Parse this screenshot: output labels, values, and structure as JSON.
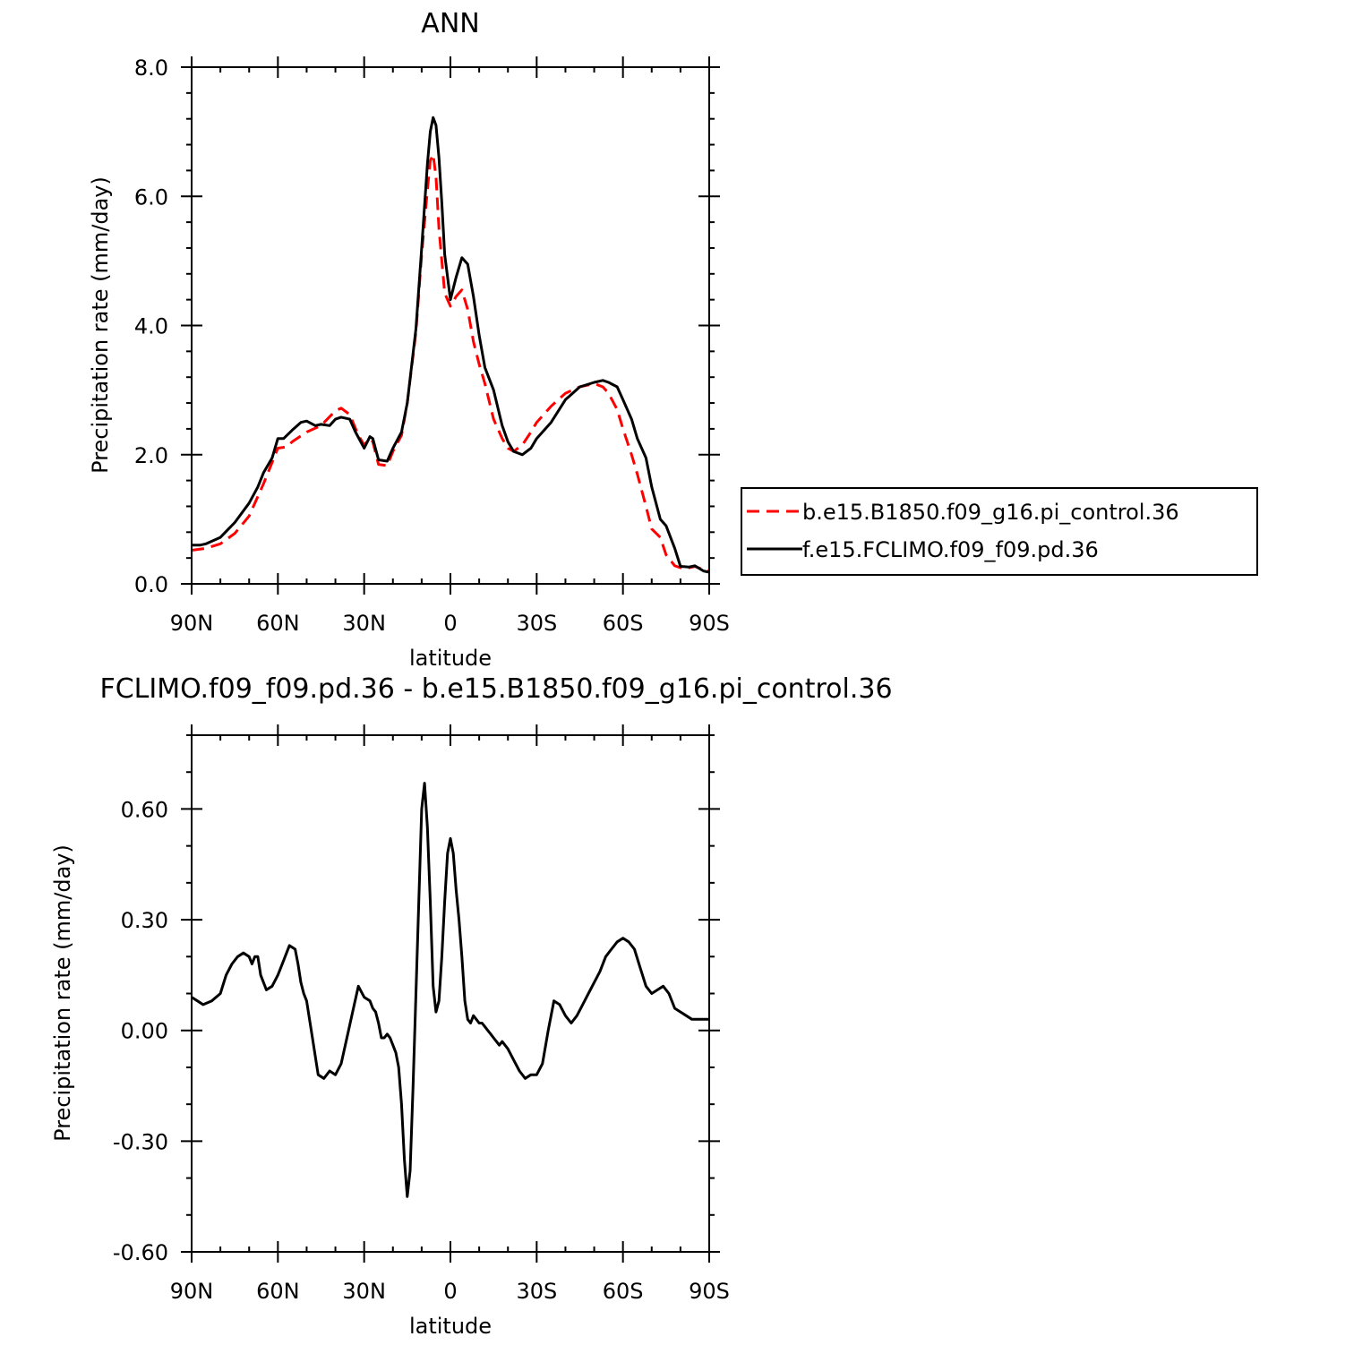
{
  "chart_data": [
    {
      "type": "line",
      "title": "ANN",
      "xlabel": "latitude",
      "ylabel": "Precipitation rate (mm/day)",
      "xlim": [
        90,
        -90
      ],
      "ylim": [
        0.0,
        8.0
      ],
      "x_ticks": [
        90,
        60,
        30,
        0,
        -30,
        -60,
        -90
      ],
      "x_tick_labels": [
        "90N",
        "60N",
        "30N",
        "0",
        "30S",
        "60S",
        "90S"
      ],
      "y_ticks": [
        0.0,
        2.0,
        4.0,
        6.0,
        8.0
      ],
      "y_tick_labels": [
        "0.0",
        "2.0",
        "4.0",
        "6.0",
        "8.0"
      ],
      "legend_position": "right-bottom-outside",
      "series": [
        {
          "name": "b.e15.B1850.f09_g16.pi_control.36",
          "color": "#ff0000",
          "dash": true,
          "x": [
            90,
            85,
            80,
            75,
            70,
            65,
            60,
            57,
            55,
            50,
            45,
            40,
            38,
            35,
            32,
            30,
            28,
            27,
            25,
            22,
            20,
            17,
            15,
            12,
            10,
            8,
            7,
            6,
            5,
            4,
            2,
            0,
            -2,
            -4,
            -6,
            -8,
            -10,
            -12,
            -15,
            -18,
            -20,
            -22,
            -25,
            -28,
            -30,
            -35,
            -40,
            -45,
            -50,
            -53,
            -55,
            -58,
            -60,
            -63,
            -65,
            -68,
            -70,
            -73,
            -75,
            -78,
            -80,
            -83,
            -85,
            -88,
            -90
          ],
          "y": [
            0.52,
            0.55,
            0.62,
            0.78,
            1.05,
            1.55,
            2.1,
            2.12,
            2.2,
            2.35,
            2.45,
            2.68,
            2.72,
            2.62,
            2.3,
            2.15,
            2.25,
            2.2,
            1.85,
            1.83,
            2.05,
            2.3,
            2.8,
            3.9,
            5.1,
            6.1,
            6.55,
            6.65,
            6.3,
            5.5,
            4.5,
            4.3,
            4.45,
            4.55,
            4.25,
            3.75,
            3.4,
            3.1,
            2.55,
            2.25,
            2.1,
            2.05,
            2.15,
            2.35,
            2.5,
            2.75,
            2.95,
            3.05,
            3.1,
            3.05,
            2.95,
            2.7,
            2.4,
            2.0,
            1.7,
            1.2,
            0.85,
            0.72,
            0.45,
            0.28,
            0.25,
            0.25,
            0.27,
            0.22,
            0.2
          ]
        },
        {
          "name": "f.e15.FCLIMO.f09_f09.pd.36",
          "color": "#000000",
          "dash": false,
          "x": [
            90,
            87,
            85,
            80,
            75,
            70,
            67,
            65,
            62,
            60,
            58,
            55,
            52,
            50,
            47,
            45,
            42,
            40,
            38,
            35,
            33,
            30,
            28,
            27,
            25,
            22,
            20,
            17,
            15,
            12,
            10,
            8,
            7,
            6,
            5,
            4,
            3,
            2,
            0,
            -2,
            -4,
            -6,
            -8,
            -10,
            -12,
            -15,
            -18,
            -20,
            -22,
            -25,
            -28,
            -30,
            -35,
            -40,
            -45,
            -50,
            -53,
            -55,
            -58,
            -60,
            -63,
            -65,
            -68,
            -70,
            -73,
            -75,
            -78,
            -80,
            -83,
            -85,
            -88,
            -90
          ],
          "y": [
            0.6,
            0.6,
            0.62,
            0.72,
            0.95,
            1.25,
            1.5,
            1.72,
            1.95,
            2.25,
            2.25,
            2.38,
            2.5,
            2.52,
            2.45,
            2.47,
            2.45,
            2.55,
            2.58,
            2.55,
            2.35,
            2.1,
            2.28,
            2.25,
            1.92,
            1.9,
            2.1,
            2.35,
            2.8,
            3.95,
            5.2,
            6.5,
            7.0,
            7.22,
            7.1,
            6.6,
            5.9,
            5.1,
            4.4,
            4.75,
            5.05,
            4.95,
            4.45,
            3.85,
            3.35,
            3.0,
            2.45,
            2.2,
            2.05,
            2.0,
            2.1,
            2.25,
            2.5,
            2.85,
            3.05,
            3.12,
            3.15,
            3.12,
            3.05,
            2.85,
            2.55,
            2.25,
            1.95,
            1.5,
            1.0,
            0.9,
            0.55,
            0.27,
            0.26,
            0.28,
            0.2,
            0.18
          ]
        }
      ]
    },
    {
      "type": "line",
      "title": "FCLIMO.f09_f09.pd.36 - b.e15.B1850.f09_g16.pi_control.36",
      "xlabel": "latitude",
      "ylabel": "Precipitation rate (mm/day)",
      "xlim": [
        90,
        -90
      ],
      "ylim": [
        -0.6,
        0.8
      ],
      "x_ticks": [
        90,
        60,
        30,
        0,
        -30,
        -60,
        -90
      ],
      "x_tick_labels": [
        "90N",
        "60N",
        "30N",
        "0",
        "30S",
        "60S",
        "90S"
      ],
      "y_ticks": [
        -0.6,
        -0.3,
        0.0,
        0.3,
        0.6
      ],
      "y_tick_labels": [
        "-0.60",
        "-0.30",
        "0.00",
        "0.30",
        "0.60"
      ],
      "series": [
        {
          "name": "",
          "color": "#000000",
          "dash": false,
          "x": [
            90,
            88,
            86,
            83,
            80,
            78,
            76,
            74,
            72,
            70,
            69,
            68,
            67,
            66,
            64,
            62,
            60,
            58,
            56,
            54,
            53,
            52,
            51,
            50,
            48,
            46,
            44,
            42,
            40,
            38,
            36,
            34,
            32,
            30,
            28,
            27,
            26,
            25,
            24,
            23,
            22,
            21,
            20,
            19,
            18,
            17,
            16,
            15,
            14,
            13,
            12,
            11,
            10,
            9,
            8,
            7,
            6,
            5,
            4,
            3,
            2,
            1,
            0,
            -1,
            -2,
            -3,
            -4,
            -5,
            -6,
            -7,
            -8,
            -9,
            -10,
            -11,
            -12,
            -13,
            -14,
            -15,
            -16,
            -17,
            -18,
            -20,
            -22,
            -24,
            -26,
            -28,
            -30,
            -32,
            -34,
            -36,
            -38,
            -40,
            -42,
            -44,
            -46,
            -48,
            -50,
            -52,
            -54,
            -56,
            -58,
            -60,
            -62,
            -64,
            -66,
            -68,
            -70,
            -72,
            -74,
            -76,
            -78,
            -80,
            -82,
            -84,
            -86,
            -88,
            -90
          ],
          "y": [
            0.09,
            0.08,
            0.07,
            0.08,
            0.1,
            0.15,
            0.18,
            0.2,
            0.21,
            0.2,
            0.18,
            0.2,
            0.2,
            0.15,
            0.11,
            0.12,
            0.15,
            0.19,
            0.23,
            0.22,
            0.18,
            0.13,
            0.1,
            0.08,
            -0.02,
            -0.12,
            -0.13,
            -0.11,
            -0.12,
            -0.09,
            -0.02,
            0.05,
            0.12,
            0.09,
            0.08,
            0.06,
            0.05,
            0.02,
            -0.02,
            -0.02,
            -0.01,
            -0.02,
            -0.04,
            -0.06,
            -0.1,
            -0.2,
            -0.35,
            -0.45,
            -0.38,
            -0.15,
            0.1,
            0.35,
            0.6,
            0.67,
            0.55,
            0.35,
            0.12,
            0.05,
            0.08,
            0.2,
            0.35,
            0.48,
            0.52,
            0.48,
            0.38,
            0.3,
            0.2,
            0.08,
            0.03,
            0.02,
            0.04,
            0.03,
            0.02,
            0.02,
            0.01,
            0.0,
            -0.01,
            -0.02,
            -0.03,
            -0.04,
            -0.03,
            -0.05,
            -0.08,
            -0.11,
            -0.13,
            -0.12,
            -0.12,
            -0.09,
            0.0,
            0.08,
            0.07,
            0.04,
            0.02,
            0.04,
            0.07,
            0.1,
            0.13,
            0.16,
            0.2,
            0.22,
            0.24,
            0.25,
            0.24,
            0.22,
            0.17,
            0.12,
            0.1,
            0.11,
            0.12,
            0.1,
            0.06,
            0.05,
            0.04,
            0.03,
            0.03,
            0.03,
            0.03
          ]
        }
      ]
    }
  ]
}
